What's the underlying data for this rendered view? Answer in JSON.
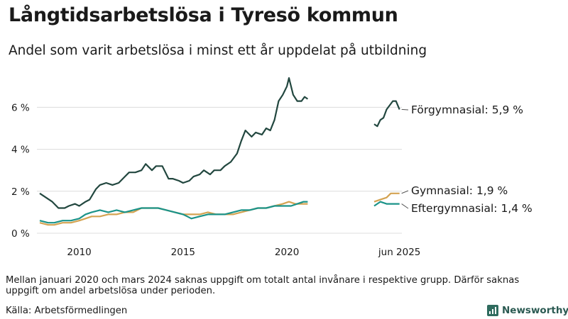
{
  "header": {
    "title": "Långtidsarbetslösa i Tyresö kommun",
    "subtitle": "Andel som varit arbetslösa i minst ett år uppdelat på utbildning"
  },
  "footer": {
    "note": "Mellan januari 2020 och mars 2024 saknas uppgift om totalt antal invånare i respektive grupp. Därför saknas uppgift om andel arbetslösa under perioden.",
    "source": "Källa: Arbetsförmedlingen",
    "brand": "Newsworthy"
  },
  "chart_data": {
    "type": "line",
    "y_ticks": [
      "0 %",
      "2 %",
      "4 %",
      "6 %"
    ],
    "y_tick_values": [
      0,
      2,
      4,
      6
    ],
    "x_ticks": [
      "2010",
      "2015",
      "2020",
      "jun 2025"
    ],
    "x_tick_values": [
      2010,
      2015,
      2020,
      2025.42
    ],
    "ylim": [
      0,
      7.4
    ],
    "grid": true,
    "colors": {
      "forgymnasial": "#22473f",
      "gymnasial": "#d4a352",
      "eftergymnasial": "#1b9389",
      "grid": "#dcdcdc",
      "text": "#1a1a1a"
    },
    "series": [
      {
        "key": "forgymnasial",
        "name": "Förgymnasial",
        "label": "Förgymnasial: 5,9 %",
        "segments": [
          [
            [
              2008.1,
              1.9
            ],
            [
              2008.4,
              1.7
            ],
            [
              2008.7,
              1.5
            ],
            [
              2009.0,
              1.2
            ],
            [
              2009.3,
              1.2
            ],
            [
              2009.5,
              1.3
            ],
            [
              2009.8,
              1.4
            ],
            [
              2010.0,
              1.3
            ],
            [
              2010.3,
              1.5
            ],
            [
              2010.5,
              1.6
            ],
            [
              2010.8,
              2.1
            ],
            [
              2011.0,
              2.3
            ],
            [
              2011.3,
              2.4
            ],
            [
              2011.6,
              2.3
            ],
            [
              2011.9,
              2.4
            ],
            [
              2012.2,
              2.7
            ],
            [
              2012.4,
              2.9
            ],
            [
              2012.7,
              2.9
            ],
            [
              2013.0,
              3.0
            ],
            [
              2013.2,
              3.3
            ],
            [
              2013.5,
              3.0
            ],
            [
              2013.7,
              3.2
            ],
            [
              2014.0,
              3.2
            ],
            [
              2014.3,
              2.6
            ],
            [
              2014.5,
              2.6
            ],
            [
              2014.8,
              2.5
            ],
            [
              2015.0,
              2.4
            ],
            [
              2015.3,
              2.5
            ],
            [
              2015.5,
              2.7
            ],
            [
              2015.8,
              2.8
            ],
            [
              2016.0,
              3.0
            ],
            [
              2016.3,
              2.8
            ],
            [
              2016.5,
              3.0
            ],
            [
              2016.8,
              3.0
            ],
            [
              2017.0,
              3.2
            ],
            [
              2017.3,
              3.4
            ],
            [
              2017.6,
              3.8
            ],
            [
              2017.8,
              4.4
            ],
            [
              2018.0,
              4.9
            ],
            [
              2018.3,
              4.6
            ],
            [
              2018.5,
              4.8
            ],
            [
              2018.8,
              4.7
            ],
            [
              2019.0,
              5.0
            ],
            [
              2019.2,
              4.9
            ],
            [
              2019.4,
              5.4
            ],
            [
              2019.6,
              6.3
            ],
            [
              2019.8,
              6.6
            ],
            [
              2020.0,
              7.0
            ],
            [
              2020.1,
              7.4
            ],
            [
              2020.3,
              6.6
            ],
            [
              2020.5,
              6.3
            ],
            [
              2020.7,
              6.3
            ],
            [
              2020.85,
              6.5
            ],
            [
              2021.0,
              6.4
            ]
          ],
          [
            [
              2024.2,
              5.2
            ],
            [
              2024.35,
              5.1
            ],
            [
              2024.5,
              5.4
            ],
            [
              2024.65,
              5.5
            ],
            [
              2024.8,
              5.9
            ],
            [
              2024.95,
              6.1
            ],
            [
              2025.1,
              6.3
            ],
            [
              2025.25,
              6.3
            ],
            [
              2025.42,
              5.9
            ]
          ]
        ]
      },
      {
        "key": "gymnasial",
        "name": "Gymnasial",
        "label": "Gymnasial: 1,9 %",
        "segments": [
          [
            [
              2008.1,
              0.5
            ],
            [
              2008.5,
              0.4
            ],
            [
              2008.8,
              0.4
            ],
            [
              2009.2,
              0.5
            ],
            [
              2009.6,
              0.5
            ],
            [
              2010.0,
              0.6
            ],
            [
              2010.3,
              0.7
            ],
            [
              2010.6,
              0.8
            ],
            [
              2011.0,
              0.8
            ],
            [
              2011.4,
              0.9
            ],
            [
              2011.8,
              0.9
            ],
            [
              2012.2,
              1.0
            ],
            [
              2012.6,
              1.0
            ],
            [
              2013.0,
              1.2
            ],
            [
              2013.4,
              1.2
            ],
            [
              2013.8,
              1.2
            ],
            [
              2014.2,
              1.1
            ],
            [
              2014.6,
              1.0
            ],
            [
              2015.0,
              0.9
            ],
            [
              2015.4,
              0.9
            ],
            [
              2015.8,
              0.9
            ],
            [
              2016.2,
              1.0
            ],
            [
              2016.6,
              0.9
            ],
            [
              2017.0,
              0.9
            ],
            [
              2017.4,
              0.9
            ],
            [
              2017.8,
              1.0
            ],
            [
              2018.2,
              1.1
            ],
            [
              2018.6,
              1.2
            ],
            [
              2019.0,
              1.2
            ],
            [
              2019.4,
              1.3
            ],
            [
              2019.8,
              1.4
            ],
            [
              2020.1,
              1.5
            ],
            [
              2020.4,
              1.4
            ],
            [
              2020.7,
              1.4
            ],
            [
              2021.0,
              1.4
            ]
          ],
          [
            [
              2024.2,
              1.5
            ],
            [
              2024.5,
              1.6
            ],
            [
              2024.8,
              1.7
            ],
            [
              2025.0,
              1.9
            ],
            [
              2025.2,
              1.9
            ],
            [
              2025.42,
              1.9
            ]
          ]
        ]
      },
      {
        "key": "eftergymnasial",
        "name": "Eftergymnasial",
        "label": "Eftergymnasial: 1,4 %",
        "segments": [
          [
            [
              2008.1,
              0.6
            ],
            [
              2008.5,
              0.5
            ],
            [
              2008.8,
              0.5
            ],
            [
              2009.2,
              0.6
            ],
            [
              2009.6,
              0.6
            ],
            [
              2010.0,
              0.7
            ],
            [
              2010.3,
              0.9
            ],
            [
              2010.6,
              1.0
            ],
            [
              2011.0,
              1.1
            ],
            [
              2011.4,
              1.0
            ],
            [
              2011.8,
              1.1
            ],
            [
              2012.2,
              1.0
            ],
            [
              2012.6,
              1.1
            ],
            [
              2013.0,
              1.2
            ],
            [
              2013.4,
              1.2
            ],
            [
              2013.8,
              1.2
            ],
            [
              2014.2,
              1.1
            ],
            [
              2014.6,
              1.0
            ],
            [
              2015.0,
              0.9
            ],
            [
              2015.2,
              0.8
            ],
            [
              2015.4,
              0.7
            ],
            [
              2015.8,
              0.8
            ],
            [
              2016.2,
              0.9
            ],
            [
              2016.6,
              0.9
            ],
            [
              2017.0,
              0.9
            ],
            [
              2017.4,
              1.0
            ],
            [
              2017.8,
              1.1
            ],
            [
              2018.2,
              1.1
            ],
            [
              2018.6,
              1.2
            ],
            [
              2019.0,
              1.2
            ],
            [
              2019.4,
              1.3
            ],
            [
              2019.8,
              1.3
            ],
            [
              2020.2,
              1.3
            ],
            [
              2020.5,
              1.4
            ],
            [
              2020.8,
              1.5
            ],
            [
              2021.0,
              1.5
            ]
          ],
          [
            [
              2024.2,
              1.3
            ],
            [
              2024.5,
              1.5
            ],
            [
              2024.8,
              1.4
            ],
            [
              2025.0,
              1.4
            ],
            [
              2025.2,
              1.4
            ],
            [
              2025.42,
              1.4
            ]
          ]
        ]
      }
    ]
  }
}
